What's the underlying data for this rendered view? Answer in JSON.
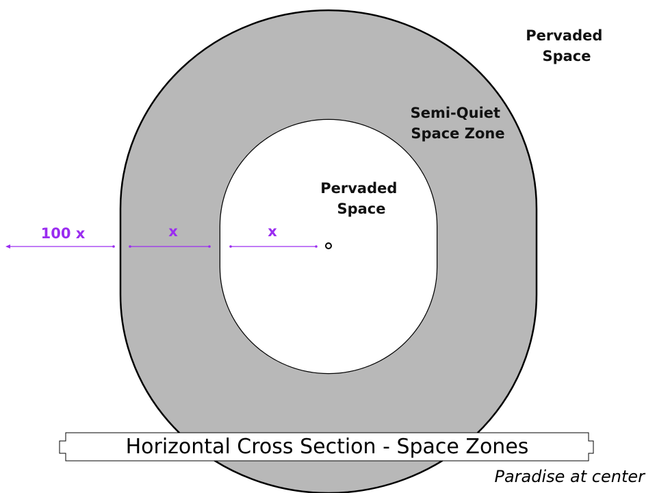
{
  "title": "Horizontal Cross Section - Space Zones",
  "subtitle": "Paradise at center",
  "zones": {
    "outer": {
      "label_line1": "Pervaded",
      "label_line2": "Space"
    },
    "middle": {
      "label_line1": "Semi-Quiet",
      "label_line2": "Space Zone"
    },
    "inner": {
      "label_line1": "Pervaded",
      "label_line2": "Space"
    }
  },
  "measurements": {
    "outer_gap": "100 x",
    "middle_width": "x",
    "inner_radius": "x"
  },
  "colors": {
    "quiet_zone_fill": "#b8b8b8",
    "outline": "#000000",
    "measure": "#9a2cf0",
    "background": "#ffffff"
  }
}
